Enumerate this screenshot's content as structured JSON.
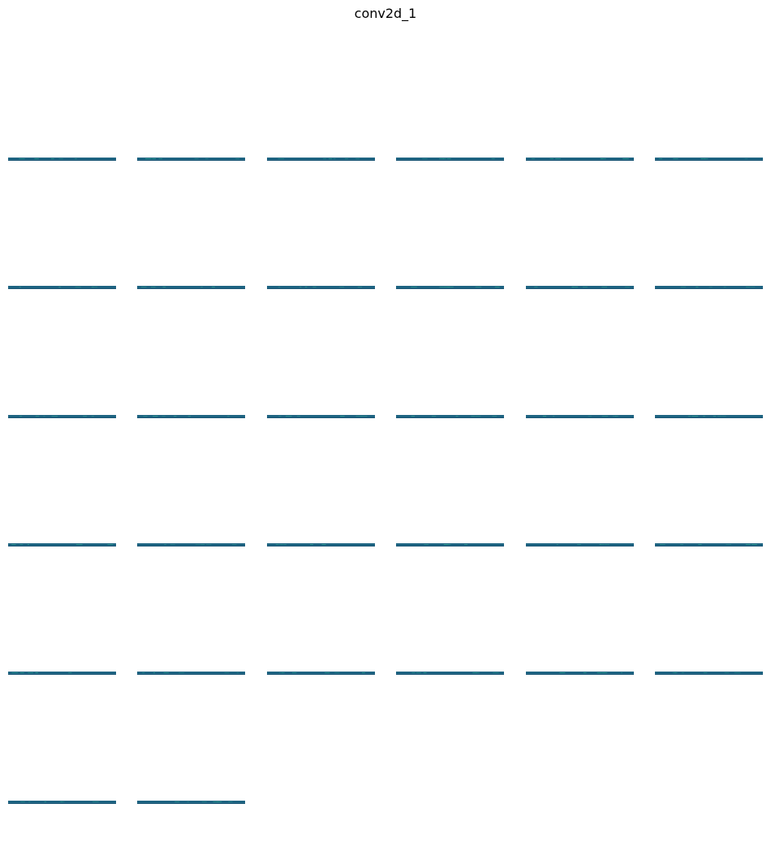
{
  "figure": {
    "title": "conv2d_1"
  },
  "chart_data": {
    "type": "heatmap",
    "title": "conv2d_1",
    "layout": {
      "rows": 6,
      "cols": 6,
      "panel_count": 32,
      "axes_visible": false
    },
    "panels": [
      {
        "index": 0
      },
      {
        "index": 1
      },
      {
        "index": 2
      },
      {
        "index": 3
      },
      {
        "index": 4
      },
      {
        "index": 5
      },
      {
        "index": 6
      },
      {
        "index": 7
      },
      {
        "index": 8
      },
      {
        "index": 9
      },
      {
        "index": 10
      },
      {
        "index": 11
      },
      {
        "index": 12
      },
      {
        "index": 13
      },
      {
        "index": 14
      },
      {
        "index": 15
      },
      {
        "index": 16
      },
      {
        "index": 17
      },
      {
        "index": 18
      },
      {
        "index": 19
      },
      {
        "index": 20
      },
      {
        "index": 21
      },
      {
        "index": 22
      },
      {
        "index": 23
      },
      {
        "index": 24
      },
      {
        "index": 25
      },
      {
        "index": 26
      },
      {
        "index": 27
      },
      {
        "index": 28
      },
      {
        "index": 29
      },
      {
        "index": 30
      },
      {
        "index": 31
      }
    ],
    "colormap": {
      "base": "#1e6482",
      "highlight": "#2f9a8f",
      "dark": "#1a5574"
    }
  }
}
